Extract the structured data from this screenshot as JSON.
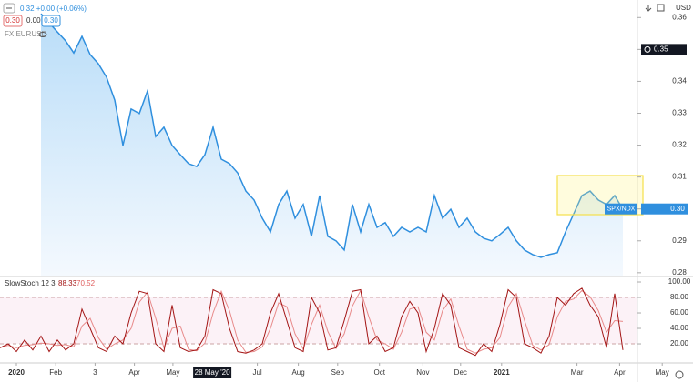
{
  "chart_data": [
    {
      "type": "line",
      "title": "FX:EURUSD",
      "header": "0.32 +0.00 (+0.06%)",
      "legend_values": [
        "0.30",
        "0.00",
        "0.30"
      ],
      "currency": "USD",
      "ylim": [
        0.2791,
        0.3655
      ],
      "yticks": [
        0.28,
        0.29,
        {
          "value": 0.3,
          "label": "0.30"
        },
        0.31,
        0.32,
        0.33,
        0.34,
        0.35,
        0.36
      ],
      "crosshair": 0.35,
      "last_label": {
        "value": 0.3,
        "label": "0.30"
      },
      "series": [
        {
          "name": "SPX/NDX",
          "color": "#2f8fde",
          "fill": true,
          "values": [
            null,
            null,
            null,
            null,
            null,
            0.3612,
            0.3583,
            0.3555,
            0.3527,
            0.3489,
            0.3541,
            0.3484,
            0.3455,
            0.3413,
            0.3341,
            0.3199,
            0.3313,
            0.3299,
            0.337,
            0.3227,
            0.3256,
            0.3199,
            0.317,
            0.3142,
            0.3133,
            0.317,
            0.3256,
            0.3156,
            0.3142,
            0.3113,
            0.3056,
            0.3028,
            0.2971,
            0.2928,
            0.3014,
            0.3056,
            0.2971,
            0.3014,
            0.2914,
            0.3042,
            0.2914,
            0.29,
            0.2871,
            0.3014,
            0.2928,
            0.3014,
            0.2942,
            0.2957,
            0.2914,
            0.2942,
            0.2928,
            0.2942,
            0.2928,
            0.3042,
            0.2971,
            0.2999,
            0.2942,
            0.2971,
            0.2928,
            0.2908,
            0.29,
            0.292,
            0.2942,
            0.29,
            0.2871,
            0.2857,
            0.2848,
            0.2857,
            0.2863,
            0.2928,
            0.2985,
            0.3042,
            0.3056,
            0.3028,
            0.3014,
            0.3042,
            0.2999
          ]
        }
      ]
    },
    {
      "type": "line",
      "title": "SlowStoch 12 3",
      "legend_values": [
        "88.33",
        "70.52"
      ],
      "ylim": [
        -3.5,
        105.9
      ],
      "yticks": [
        {
          "value": 20,
          "label": "20.00"
        },
        {
          "value": 40,
          "label": "40.00"
        },
        {
          "value": 60,
          "label": "60.00"
        },
        {
          "value": 80,
          "label": "80.00"
        },
        {
          "value": 100,
          "label": "100.00"
        }
      ],
      "band": [
        20,
        80
      ],
      "xlim": [
        0,
        84
      ],
      "xticks": [
        {
          "value": 2,
          "label": "2020"
        },
        {
          "value": 6.8,
          "label": "Feb"
        },
        {
          "value": 11.6,
          "label": "3"
        },
        {
          "value": 16.4,
          "label": "Apr"
        },
        {
          "value": 21.1,
          "label": "May"
        },
        {
          "value": 31.4,
          "label": "Jul"
        },
        {
          "value": 36.4,
          "label": "Aug"
        },
        {
          "value": 41.2,
          "label": "Sep"
        },
        {
          "value": 46.3,
          "label": "Oct"
        },
        {
          "value": 51.6,
          "label": "Nov"
        },
        {
          "value": 56.2,
          "label": "Dec"
        },
        {
          "value": 61.2,
          "label": "2021"
        },
        {
          "value": 70.4,
          "label": "Mar"
        },
        {
          "value": 75.6,
          "label": "Apr"
        },
        {
          "value": 80.8,
          "label": "May"
        }
      ],
      "crosshair_x": {
        "value": 25.9,
        "label": "28 May '20"
      },
      "series": [
        {
          "color": "#e88a8a",
          "values": [
            15,
            18,
            15,
            18,
            19,
            21,
            20,
            18,
            19,
            16,
            43,
            53,
            28,
            13,
            20,
            25,
            40,
            74,
            87,
            53,
            15,
            40,
            43,
            13,
            11,
            21,
            60,
            88,
            63,
            25,
            9,
            10,
            16,
            40,
            73,
            68,
            33,
            13,
            45,
            70,
            36,
            14,
            33,
            69,
            89,
            55,
            25,
            20,
            13,
            35,
            65,
            68,
            35,
            25,
            63,
            78,
            43,
            13,
            8,
            13,
            15,
            28,
            68,
            85,
            50,
            18,
            12,
            19,
            55,
            75,
            78,
            89,
            81,
            63,
            35,
            50,
            49
          ]
        },
        {
          "color": "#a31515",
          "values": [
            15,
            20,
            10,
            25,
            12,
            30,
            10,
            25,
            12,
            20,
            65,
            40,
            15,
            10,
            30,
            20,
            60,
            88,
            85,
            20,
            10,
            70,
            15,
            10,
            12,
            30,
            90,
            85,
            40,
            10,
            8,
            12,
            20,
            60,
            85,
            50,
            15,
            10,
            80,
            60,
            12,
            15,
            50,
            88,
            90,
            20,
            30,
            10,
            15,
            55,
            75,
            60,
            10,
            40,
            85,
            70,
            15,
            10,
            5,
            20,
            10,
            45,
            90,
            80,
            20,
            15,
            8,
            30,
            80,
            70,
            85,
            92,
            70,
            55,
            15,
            85,
            12
          ]
        }
      ]
    }
  ]
}
